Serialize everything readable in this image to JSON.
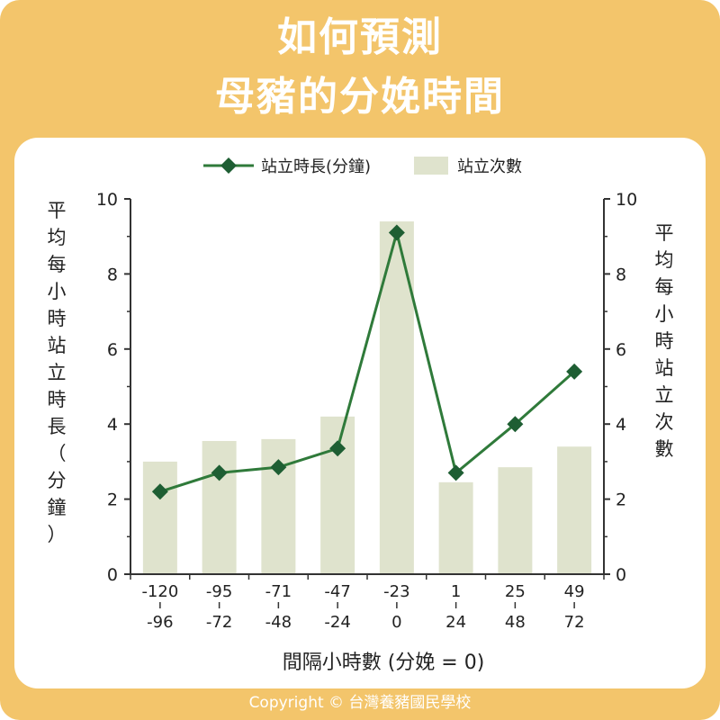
{
  "title": {
    "line1": "如何預測",
    "line2": "母豬的分娩時間"
  },
  "copyright": "Copyright © 台灣養豬國民學校",
  "colors": {
    "background": "#f3c56b",
    "line": "#2f7a3a",
    "marker": "#1e5e33",
    "bar": "#dfe3cd"
  },
  "chart_data": {
    "type": "bar",
    "categories": [
      [
        "-120",
        "-96"
      ],
      [
        "-95",
        "-72"
      ],
      [
        "-71",
        "-48"
      ],
      [
        "-47",
        "-24"
      ],
      [
        "-23",
        "0"
      ],
      [
        "1",
        "24"
      ],
      [
        "25",
        "48"
      ],
      [
        "49",
        "72"
      ]
    ],
    "xlabel": "間隔小時數 (分娩 = 0)",
    "ylabel_left": [
      "平",
      "均",
      "每",
      "小",
      "時",
      "站",
      "立",
      "時",
      "長",
      "（",
      "分",
      "鐘",
      "）"
    ],
    "ylabel_right": [
      "平",
      "均",
      "每",
      "小",
      "時",
      "站",
      "立",
      "次",
      "數"
    ],
    "ylim": [
      0,
      10
    ],
    "yticks": [
      "0",
      "2",
      "4",
      "6",
      "8",
      "10"
    ],
    "legend": {
      "placement": "top-center",
      "line": "站立時長(分鐘)",
      "bar": "站立次數"
    },
    "series": [
      {
        "name": "站立時長(分鐘)",
        "type": "line",
        "axis": "left",
        "values": [
          2.2,
          2.7,
          2.85,
          3.35,
          9.1,
          2.7,
          4.0,
          5.4
        ]
      },
      {
        "name": "站立次數",
        "type": "bar",
        "axis": "right",
        "values": [
          3.0,
          3.55,
          3.6,
          4.2,
          9.4,
          2.45,
          2.85,
          3.4
        ]
      }
    ]
  }
}
